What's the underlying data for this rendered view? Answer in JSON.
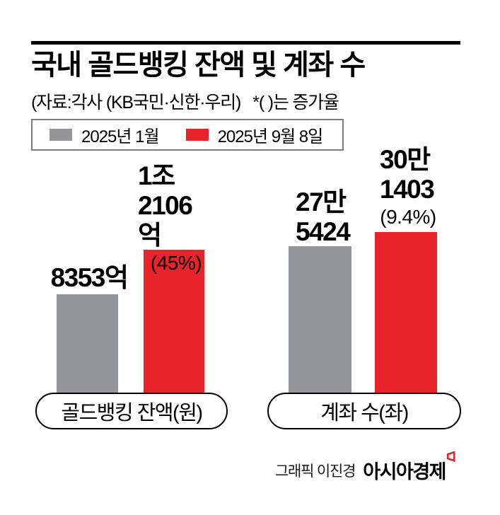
{
  "header": {
    "title": "국내 골드뱅킹 잔액 및 계좌 수",
    "source_note": "(자료:각사 (KB국민·신한·우리)   *( )는 증가율"
  },
  "legend": {
    "items": [
      {
        "label": "2025년 1월",
        "color": "#939598"
      },
      {
        "label": "2025년 9월 8일",
        "color": "#e8232a"
      }
    ]
  },
  "chart_data": {
    "type": "bar",
    "title": "국내 골드뱅킹 잔액 및 계좌 수",
    "note": "*( )는 증가율",
    "source": "각사 (KB국민·신한·우리)",
    "grid": false,
    "legend_position": "top",
    "categories": [
      "골드뱅킹 잔액(원)",
      "계좌 수(좌)"
    ],
    "category_units": [
      "억원",
      "좌"
    ],
    "series": [
      {
        "name": "2025년 1월",
        "color": "#939598",
        "values": [
          8353,
          275424
        ],
        "value_labels": [
          [
            "8353억"
          ],
          [
            "27만",
            "5424"
          ]
        ]
      },
      {
        "name": "2025년 9월 8일",
        "color": "#e8232a",
        "values": [
          12106,
          301403
        ],
        "value_labels": [
          [
            "1조",
            "2106억"
          ],
          [
            "30만",
            "1403"
          ]
        ],
        "growth_labels": [
          "(45%)",
          "(9.4%)"
        ]
      }
    ]
  },
  "colors": {
    "accent_red": "#e8232a",
    "bar_gray": "#939598",
    "rule_black": "#000000"
  },
  "footer": {
    "credit": "그래픽 이진경",
    "brand": "아시아경제"
  }
}
